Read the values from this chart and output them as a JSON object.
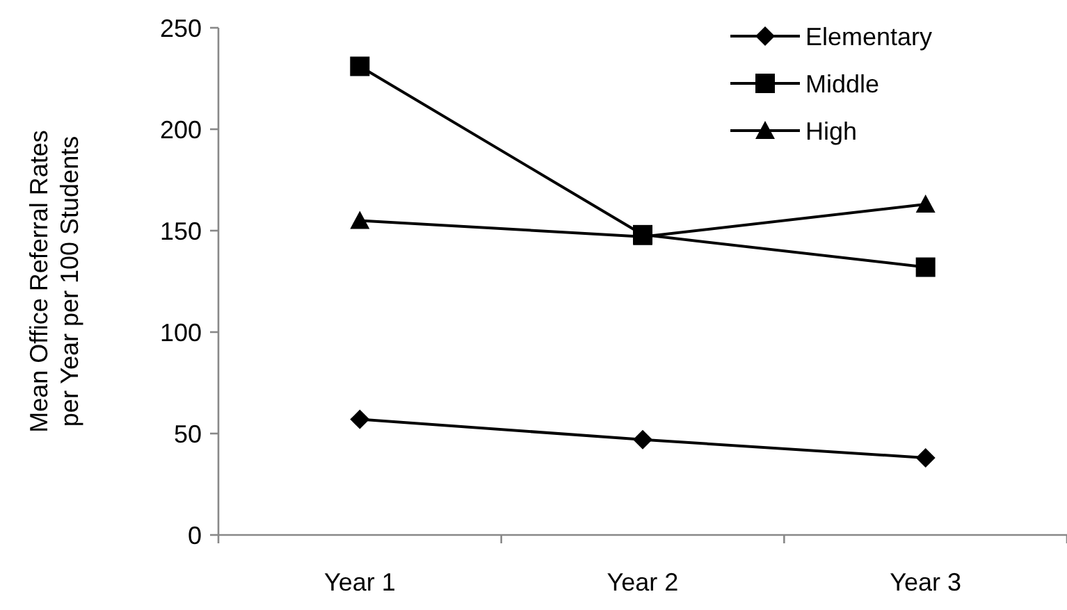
{
  "chart_data": {
    "type": "line",
    "ylabel": "Mean Office Referral Rates\nper Year per 100 Students",
    "categories": [
      "Year 1",
      "Year 2",
      "Year 3"
    ],
    "series": [
      {
        "name": "Elementary",
        "color": "#000000",
        "marker": "diamond",
        "values": [
          57,
          47,
          38
        ]
      },
      {
        "name": "Middle",
        "color": "#000000",
        "marker": "square",
        "values": [
          231,
          148,
          132
        ]
      },
      {
        "name": "High",
        "color": "#000000",
        "marker": "triangle",
        "values": [
          155,
          147,
          163
        ]
      }
    ],
    "ylim": [
      0,
      250
    ],
    "yticks": [
      0,
      50,
      100,
      150,
      200,
      250
    ],
    "grid": false,
    "legend": "top right",
    "line_style": "solid"
  }
}
